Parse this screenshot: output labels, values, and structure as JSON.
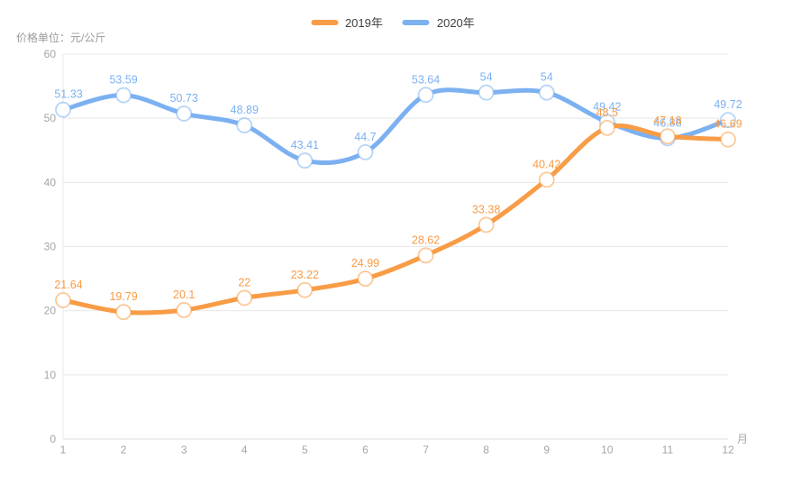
{
  "page": {
    "background": "#ffffff"
  },
  "chart_data": {
    "type": "line",
    "style": "smooth spline curves, thick strokes, white circular markers, value labels above each point",
    "title": "",
    "categories": [
      "1",
      "2",
      "3",
      "4",
      "5",
      "6",
      "7",
      "8",
      "9",
      "10",
      "11",
      "12"
    ],
    "xlabel": "月",
    "ylabel": "价格单位：元/公斤",
    "ylim": [
      0,
      60
    ],
    "ytick_interval": 10,
    "yticks": [
      0,
      10,
      20,
      30,
      40,
      50,
      60
    ],
    "grid": "horizontal gridlines only",
    "legend_position": "top-center",
    "series": [
      {
        "name": "2019年",
        "color": "#F89C46",
        "values": [
          21.64,
          19.79,
          20.1,
          22,
          23.22,
          24.99,
          28.62,
          33.38,
          40.42,
          48.5,
          47.18,
          46.69
        ]
      },
      {
        "name": "2020年",
        "color": "#7CB1F1",
        "values": [
          51.33,
          53.59,
          50.73,
          48.89,
          43.41,
          44.7,
          53.64,
          54,
          54,
          49.42,
          46.88,
          49.72
        ]
      }
    ],
    "colors": {
      "grid_line": "#E8E8E8",
      "axis_line": "#DEDEDE",
      "tick_text": "#A5A5A5",
      "legend_text": "#404040",
      "background": "#FFFFFF"
    }
  }
}
